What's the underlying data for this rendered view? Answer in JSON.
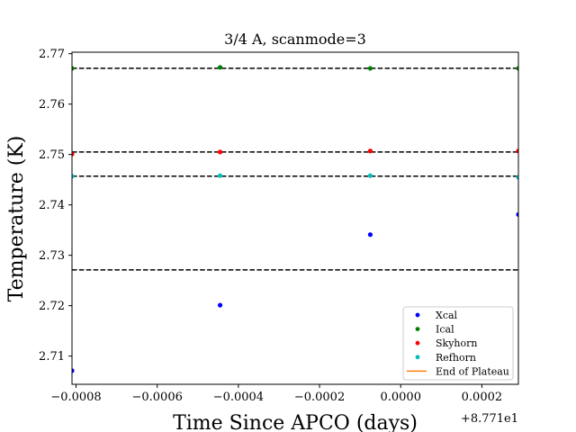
{
  "chart_data": {
    "type": "scatter",
    "title": "3/4 A, scanmode=3",
    "xlabel": "Time Since APCO (days)",
    "ylabel": "Temperature (K)",
    "x_offset_label": "+8.771e1",
    "xlim": [
      -0.00081,
      0.00029
    ],
    "ylim": [
      2.7044,
      2.7703
    ],
    "x_ticks": [
      {
        "value": -0.0008,
        "label": "−0.0008"
      },
      {
        "value": -0.0006,
        "label": "−0.0006"
      },
      {
        "value": -0.0004,
        "label": "−0.0004"
      },
      {
        "value": -0.0002,
        "label": "−0.0002"
      },
      {
        "value": 0.0,
        "label": "0.0000"
      },
      {
        "value": 0.0002,
        "label": "0.0002"
      }
    ],
    "y_ticks": [
      {
        "value": 2.71,
        "label": "2.71"
      },
      {
        "value": 2.72,
        "label": "2.72"
      },
      {
        "value": 2.73,
        "label": "2.73"
      },
      {
        "value": 2.74,
        "label": "2.74"
      },
      {
        "value": 2.75,
        "label": "2.75"
      },
      {
        "value": 2.76,
        "label": "2.76"
      },
      {
        "value": 2.77,
        "label": "2.77"
      }
    ],
    "series": [
      {
        "name": "Xcal",
        "color": "#0000ff",
        "x": [
          -0.00081,
          -0.000445,
          -7.5e-05,
          0.00029
        ],
        "y": [
          2.7071,
          2.7201,
          2.7341,
          2.7381
        ]
      },
      {
        "name": "Ical",
        "color": "#008000",
        "x": [
          -0.00081,
          -0.000445,
          -7.5e-05,
          0.00029
        ],
        "y": [
          2.7671,
          2.7673,
          2.7671,
          2.7671
        ]
      },
      {
        "name": "Skyhorn",
        "color": "#ff0000",
        "x": [
          -0.00081,
          -0.000445,
          -7.5e-05,
          0.00029
        ],
        "y": [
          2.7501,
          2.7505,
          2.7507,
          2.7507
        ]
      },
      {
        "name": "Refhorn",
        "color": "#00bfbf",
        "x": [
          -0.00081,
          -0.000445,
          -7.5e-05,
          0.00029
        ],
        "y": [
          2.7457,
          2.7458,
          2.7458,
          2.7455
        ]
      },
      {
        "name": "End of Plateau",
        "color": "#ff7f0e",
        "x": [],
        "y": []
      }
    ],
    "reference_lines": [
      {
        "y": 2.7671,
        "style": "dashed",
        "color": "#000000"
      },
      {
        "y": 2.7505,
        "style": "dashed",
        "color": "#000000"
      },
      {
        "y": 2.7457,
        "style": "dashed",
        "color": "#000000"
      },
      {
        "y": 2.7271,
        "style": "dashed",
        "color": "#000000"
      }
    ],
    "legend": {
      "placement": "lower-right"
    },
    "grid": false
  }
}
